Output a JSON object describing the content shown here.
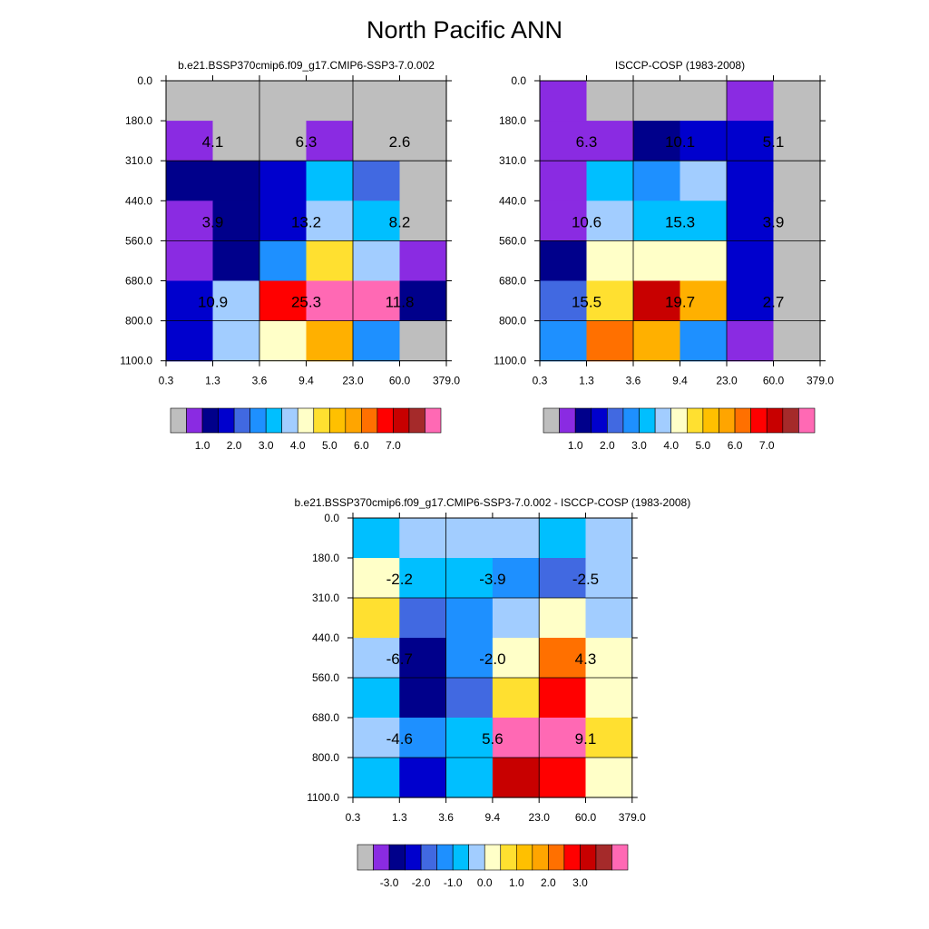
{
  "title": "North Pacific ANN",
  "colors": {
    "abs_bar": [
      "#BEBEBE",
      "#8A2BE2",
      "#00008B",
      "#0000CD",
      "#4169E1",
      "#1E90FF",
      "#00BFFF",
      "#A2CDFF",
      "#FFFFC8",
      "#FFE030",
      "#FFC000",
      "#FFA500",
      "#FF7000",
      "#FF0000",
      "#C80000",
      "#A52A2A",
      "#FF69B4"
    ],
    "abs_map": {
      "G": "#BEBEBE",
      "V": "#8A2BE2",
      "N": "#00008B",
      "M": "#0000CD",
      "R": "#4169E1",
      "D": "#1E90FF",
      "S": "#00BFFF",
      "L": "#A2CDFF",
      "Y": "#FFFFC8",
      "J": "#FFE030",
      "A": "#FFB000",
      "O": "#FF7000",
      "E": "#FF0000",
      "K": "#C80000",
      "P": "#FF69B4"
    },
    "diff_bar": [
      "#BEBEBE",
      "#8A2BE2",
      "#00008B",
      "#0000CD",
      "#4169E1",
      "#1E90FF",
      "#00BFFF",
      "#A2CDFF",
      "#FFFFC8",
      "#FFE030",
      "#FFC000",
      "#FFA500",
      "#FF7000",
      "#FF0000",
      "#C80000",
      "#A52A2A",
      "#FF69B4"
    ]
  },
  "chart_data": [
    {
      "type": "heatmap",
      "title": "b.e21.BSSP370cmip6.f09_g17.CMIP6-SSP3-7.0.002",
      "x_ticks": [
        "0.3",
        "1.3",
        "3.6",
        "9.4",
        "23.0",
        "60.0",
        "379.0"
      ],
      "y_ticks": [
        "0.0",
        "180.0",
        "310.0",
        "440.0",
        "560.0",
        "680.0",
        "800.0",
        "1100.0"
      ],
      "grid_codes": [
        "GGGGGG",
        "VGGVGG",
        "NNMSRG",
        "VNMLSG",
        "VNDJLV",
        "MLEPPN",
        "MLYADG"
      ],
      "block_labels": [
        [
          "4.1",
          "6.3",
          "2.6"
        ],
        [
          "3.9",
          "13.2",
          "8.2"
        ],
        [
          "10.9",
          "25.3",
          "11.8"
        ]
      ],
      "colorbar_labels": [
        "1.0",
        "2.0",
        "3.0",
        "4.0",
        "5.0",
        "6.0",
        "7.0"
      ]
    },
    {
      "type": "heatmap",
      "title": "ISCCP-COSP (1983-2008)",
      "x_ticks": [
        "0.3",
        "1.3",
        "3.6",
        "9.4",
        "23.0",
        "60.0",
        "379.0"
      ],
      "y_ticks": [
        "0.0",
        "180.0",
        "310.0",
        "440.0",
        "560.0",
        "680.0",
        "800.0",
        "1100.0"
      ],
      "grid_codes": [
        "VGGGVG",
        "VVNMMG",
        "VSDLMG",
        "VLSSMG",
        "NYYYMG",
        "RJKAMG",
        "DOADVG"
      ],
      "block_labels": [
        [
          "6.3",
          "10.1",
          "5.1"
        ],
        [
          "10.6",
          "15.3",
          "3.9"
        ],
        [
          "15.5",
          "19.7",
          "2.7"
        ]
      ],
      "colorbar_labels": [
        "1.0",
        "2.0",
        "3.0",
        "4.0",
        "5.0",
        "6.0",
        "7.0"
      ]
    },
    {
      "type": "heatmap",
      "title": "b.e21.BSSP370cmip6.f09_g17.CMIP6-SSP3-7.0.002 - ISCCP-COSP (1983-2008)",
      "x_ticks": [
        "0.3",
        "1.3",
        "3.6",
        "9.4",
        "23.0",
        "60.0",
        "379.0"
      ],
      "y_ticks": [
        "0.0",
        "180.0",
        "310.0",
        "440.0",
        "560.0",
        "680.0",
        "800.0",
        "1100.0"
      ],
      "grid_codes": [
        "SLLLSL",
        "YSSDRL",
        "JRDLYL",
        "LNDYOY",
        "SNRJEY",
        "LDSPPJ",
        "SMSKEY"
      ],
      "block_labels": [
        [
          "-2.2",
          "-3.9",
          "-2.5"
        ],
        [
          "-6.7",
          "-2.0",
          "4.3"
        ],
        [
          "-4.6",
          "5.6",
          "9.1"
        ]
      ],
      "colorbar_labels": [
        "-3.0",
        "-2.0",
        "-1.0",
        "0.0",
        "1.0",
        "2.0",
        "3.0"
      ]
    }
  ]
}
